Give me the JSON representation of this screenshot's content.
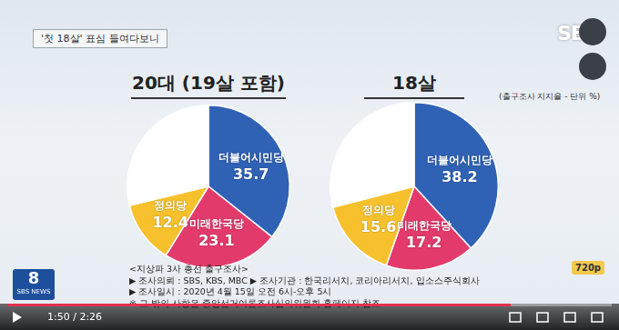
{
  "header": {
    "title": "'첫 18살' 표심 들여다보니",
    "logo": "SB"
  },
  "note": "(출구조사 지지율 - 단위 %)",
  "chart_data": [
    {
      "type": "pie",
      "title": "20대 (19살 포함)",
      "categories": [
        "더불어시민당",
        "미래한국당",
        "정의당",
        null
      ],
      "values": [
        35.7,
        23.1,
        12.4,
        28.8
      ],
      "colors": [
        "#2f62b5",
        "#e23a6b",
        "#f6c12d",
        "#ffffff"
      ],
      "data_labels": true
    },
    {
      "type": "pie",
      "title": "18살",
      "categories": [
        "더불어시민당",
        "미래한국당",
        "정의당",
        null
      ],
      "values": [
        38.2,
        17.2,
        15.6,
        29.0
      ],
      "colors": [
        "#2f62b5",
        "#e23a6b",
        "#f6c12d",
        "#ffffff"
      ],
      "data_labels": true
    }
  ],
  "source": {
    "title": "<지상파 3사 총선 출구조사>",
    "lines": [
      "▶ 조사의뢰 : SBS, KBS, MBC  ▶ 조사기관 : 한국리서치, 코리아리서치, 입소스주식회사",
      "▶ 조사일시 : 2020년 4월 15일 오전 6시-오후 5시",
      "※ 그 밖의 사항은 중앙선거여론조사심의위원회 홈페이지 참조"
    ]
  },
  "player": {
    "channel": "8",
    "brand": "SBS NEWS",
    "time": "1:50 / 2:26",
    "quality": "720p"
  }
}
